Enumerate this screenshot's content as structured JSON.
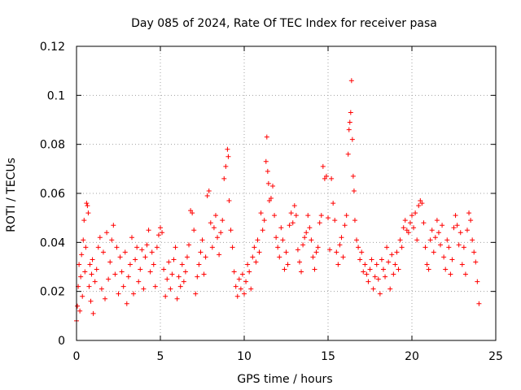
{
  "chart_data": {
    "type": "scatter",
    "title": "Day 085 of 2024, Rate Of TEC Index for receiver pasa",
    "xlabel": "GPS time / hours",
    "ylabel": "ROTI / TECUs",
    "xlim": [
      0,
      25
    ],
    "ylim": [
      0,
      0.12
    ],
    "x_ticks": [
      0,
      5,
      10,
      15,
      20,
      25
    ],
    "x_tick_labels": [
      "0",
      "5",
      "10",
      "15",
      "20",
      "25"
    ],
    "y_ticks": [
      0,
      0.02,
      0.04,
      0.06,
      0.08,
      0.1,
      0.12
    ],
    "y_tick_labels": [
      "0",
      "0.02",
      "0.04",
      "0.06",
      "0.08",
      "0.1",
      "0.12"
    ],
    "grid": true,
    "marker": "+",
    "series": [
      {
        "name": "ROTI",
        "color": "#ff0000",
        "points": [
          [
            0.0,
            0.008
          ],
          [
            0.05,
            0.014
          ],
          [
            0.1,
            0.022
          ],
          [
            0.15,
            0.031
          ],
          [
            0.2,
            0.012
          ],
          [
            0.25,
            0.026
          ],
          [
            0.3,
            0.035
          ],
          [
            0.35,
            0.018
          ],
          [
            0.4,
            0.041
          ],
          [
            0.45,
            0.049
          ],
          [
            0.5,
            0.028
          ],
          [
            0.55,
            0.038
          ],
          [
            0.6,
            0.056
          ],
          [
            0.65,
            0.055
          ],
          [
            0.7,
            0.052
          ],
          [
            0.75,
            0.022
          ],
          [
            0.8,
            0.031
          ],
          [
            0.85,
            0.016
          ],
          [
            0.9,
            0.027
          ],
          [
            0.95,
            0.033
          ],
          [
            1.0,
            0.011
          ],
          [
            1.1,
            0.024
          ],
          [
            1.2,
            0.029
          ],
          [
            1.3,
            0.038
          ],
          [
            1.4,
            0.042
          ],
          [
            1.5,
            0.021
          ],
          [
            1.6,
            0.036
          ],
          [
            1.7,
            0.017
          ],
          [
            1.8,
            0.044
          ],
          [
            1.9,
            0.025
          ],
          [
            2.0,
            0.032
          ],
          [
            2.1,
            0.041
          ],
          [
            2.2,
            0.047
          ],
          [
            2.3,
            0.027
          ],
          [
            2.4,
            0.038
          ],
          [
            2.5,
            0.019
          ],
          [
            2.6,
            0.034
          ],
          [
            2.7,
            0.028
          ],
          [
            2.8,
            0.022
          ],
          [
            2.9,
            0.036
          ],
          [
            3.0,
            0.015
          ],
          [
            3.1,
            0.026
          ],
          [
            3.2,
            0.031
          ],
          [
            3.3,
            0.042
          ],
          [
            3.4,
            0.019
          ],
          [
            3.5,
            0.033
          ],
          [
            3.6,
            0.038
          ],
          [
            3.7,
            0.024
          ],
          [
            3.8,
            0.029
          ],
          [
            3.9,
            0.037
          ],
          [
            4.0,
            0.021
          ],
          [
            4.1,
            0.034
          ],
          [
            4.2,
            0.039
          ],
          [
            4.3,
            0.045
          ],
          [
            4.4,
            0.028
          ],
          [
            4.5,
            0.036
          ],
          [
            4.6,
            0.031
          ],
          [
            4.7,
            0.022
          ],
          [
            4.8,
            0.038
          ],
          [
            4.9,
            0.043
          ],
          [
            5.0,
            0.046
          ],
          [
            5.1,
            0.044
          ],
          [
            5.2,
            0.029
          ],
          [
            5.3,
            0.018
          ],
          [
            5.4,
            0.025
          ],
          [
            5.5,
            0.032
          ],
          [
            5.6,
            0.021
          ],
          [
            5.7,
            0.027
          ],
          [
            5.8,
            0.033
          ],
          [
            5.9,
            0.038
          ],
          [
            6.0,
            0.017
          ],
          [
            6.1,
            0.026
          ],
          [
            6.2,
            0.022
          ],
          [
            6.3,
            0.031
          ],
          [
            6.4,
            0.024
          ],
          [
            6.5,
            0.028
          ],
          [
            6.6,
            0.034
          ],
          [
            6.7,
            0.039
          ],
          [
            6.8,
            0.053
          ],
          [
            6.9,
            0.052
          ],
          [
            7.0,
            0.045
          ],
          [
            7.1,
            0.019
          ],
          [
            7.2,
            0.026
          ],
          [
            7.3,
            0.031
          ],
          [
            7.4,
            0.036
          ],
          [
            7.5,
            0.041
          ],
          [
            7.6,
            0.027
          ],
          [
            7.7,
            0.034
          ],
          [
            7.8,
            0.059
          ],
          [
            7.9,
            0.061
          ],
          [
            8.0,
            0.048
          ],
          [
            8.1,
            0.038
          ],
          [
            8.2,
            0.046
          ],
          [
            8.3,
            0.051
          ],
          [
            8.4,
            0.042
          ],
          [
            8.5,
            0.035
          ],
          [
            8.6,
            0.044
          ],
          [
            8.7,
            0.049
          ],
          [
            8.8,
            0.066
          ],
          [
            8.9,
            0.071
          ],
          [
            9.0,
            0.078
          ],
          [
            9.05,
            0.075
          ],
          [
            9.1,
            0.057
          ],
          [
            9.2,
            0.045
          ],
          [
            9.3,
            0.038
          ],
          [
            9.4,
            0.028
          ],
          [
            9.5,
            0.022
          ],
          [
            9.6,
            0.018
          ],
          [
            9.7,
            0.025
          ],
          [
            9.8,
            0.021
          ],
          [
            9.9,
            0.027
          ],
          [
            10.0,
            0.019
          ],
          [
            10.1,
            0.024
          ],
          [
            10.2,
            0.031
          ],
          [
            10.3,
            0.028
          ],
          [
            10.4,
            0.021
          ],
          [
            10.5,
            0.034
          ],
          [
            10.6,
            0.038
          ],
          [
            10.7,
            0.032
          ],
          [
            10.8,
            0.041
          ],
          [
            10.9,
            0.036
          ],
          [
            11.0,
            0.052
          ],
          [
            11.1,
            0.045
          ],
          [
            11.2,
            0.049
          ],
          [
            11.3,
            0.073
          ],
          [
            11.35,
            0.083
          ],
          [
            11.4,
            0.069
          ],
          [
            11.45,
            0.064
          ],
          [
            11.5,
            0.057
          ],
          [
            11.6,
            0.058
          ],
          [
            11.7,
            0.063
          ],
          [
            11.8,
            0.051
          ],
          [
            11.9,
            0.042
          ],
          [
            12.0,
            0.038
          ],
          [
            12.1,
            0.034
          ],
          [
            12.2,
            0.046
          ],
          [
            12.3,
            0.041
          ],
          [
            12.4,
            0.029
          ],
          [
            12.5,
            0.036
          ],
          [
            12.6,
            0.031
          ],
          [
            12.7,
            0.047
          ],
          [
            12.8,
            0.052
          ],
          [
            12.9,
            0.048
          ],
          [
            13.0,
            0.055
          ],
          [
            13.1,
            0.051
          ],
          [
            13.2,
            0.037
          ],
          [
            13.3,
            0.032
          ],
          [
            13.4,
            0.028
          ],
          [
            13.5,
            0.039
          ],
          [
            13.6,
            0.042
          ],
          [
            13.7,
            0.044
          ],
          [
            13.8,
            0.051
          ],
          [
            13.9,
            0.046
          ],
          [
            14.0,
            0.041
          ],
          [
            14.1,
            0.034
          ],
          [
            14.2,
            0.029
          ],
          [
            14.3,
            0.036
          ],
          [
            14.4,
            0.038
          ],
          [
            14.5,
            0.048
          ],
          [
            14.6,
            0.051
          ],
          [
            14.7,
            0.071
          ],
          [
            14.8,
            0.066
          ],
          [
            14.9,
            0.067
          ],
          [
            15.0,
            0.05
          ],
          [
            15.1,
            0.037
          ],
          [
            15.2,
            0.066
          ],
          [
            15.3,
            0.056
          ],
          [
            15.4,
            0.049
          ],
          [
            15.5,
            0.036
          ],
          [
            15.6,
            0.031
          ],
          [
            15.7,
            0.039
          ],
          [
            15.8,
            0.042
          ],
          [
            15.9,
            0.034
          ],
          [
            16.0,
            0.047
          ],
          [
            16.1,
            0.051
          ],
          [
            16.2,
            0.076
          ],
          [
            16.25,
            0.086
          ],
          [
            16.3,
            0.089
          ],
          [
            16.35,
            0.093
          ],
          [
            16.4,
            0.106
          ],
          [
            16.45,
            0.082
          ],
          [
            16.5,
            0.067
          ],
          [
            16.55,
            0.061
          ],
          [
            16.6,
            0.049
          ],
          [
            16.7,
            0.041
          ],
          [
            16.8,
            0.038
          ],
          [
            16.9,
            0.033
          ],
          [
            17.0,
            0.036
          ],
          [
            17.1,
            0.028
          ],
          [
            17.2,
            0.031
          ],
          [
            17.3,
            0.027
          ],
          [
            17.4,
            0.024
          ],
          [
            17.5,
            0.029
          ],
          [
            17.6,
            0.033
          ],
          [
            17.7,
            0.021
          ],
          [
            17.8,
            0.026
          ],
          [
            17.9,
            0.031
          ],
          [
            18.0,
            0.025
          ],
          [
            18.1,
            0.019
          ],
          [
            18.2,
            0.033
          ],
          [
            18.3,
            0.029
          ],
          [
            18.4,
            0.026
          ],
          [
            18.5,
            0.038
          ],
          [
            18.6,
            0.032
          ],
          [
            18.7,
            0.021
          ],
          [
            18.8,
            0.035
          ],
          [
            18.9,
            0.027
          ],
          [
            19.0,
            0.031
          ],
          [
            19.1,
            0.036
          ],
          [
            19.2,
            0.029
          ],
          [
            19.3,
            0.041
          ],
          [
            19.4,
            0.038
          ],
          [
            19.5,
            0.046
          ],
          [
            19.6,
            0.049
          ],
          [
            19.7,
            0.045
          ],
          [
            19.8,
            0.044
          ],
          [
            19.9,
            0.048
          ],
          [
            20.0,
            0.051
          ],
          [
            20.1,
            0.046
          ],
          [
            20.2,
            0.052
          ],
          [
            20.3,
            0.041
          ],
          [
            20.4,
            0.055
          ],
          [
            20.5,
            0.057
          ],
          [
            20.6,
            0.056
          ],
          [
            20.7,
            0.048
          ],
          [
            20.8,
            0.038
          ],
          [
            20.9,
            0.031
          ],
          [
            21.0,
            0.029
          ],
          [
            21.1,
            0.041
          ],
          [
            21.2,
            0.045
          ],
          [
            21.3,
            0.036
          ],
          [
            21.4,
            0.042
          ],
          [
            21.5,
            0.049
          ],
          [
            21.6,
            0.044
          ],
          [
            21.7,
            0.039
          ],
          [
            21.8,
            0.047
          ],
          [
            21.9,
            0.034
          ],
          [
            22.0,
            0.029
          ],
          [
            22.1,
            0.041
          ],
          [
            22.2,
            0.038
          ],
          [
            22.3,
            0.027
          ],
          [
            22.4,
            0.033
          ],
          [
            22.5,
            0.046
          ],
          [
            22.6,
            0.051
          ],
          [
            22.7,
            0.047
          ],
          [
            22.8,
            0.039
          ],
          [
            22.9,
            0.044
          ],
          [
            23.0,
            0.031
          ],
          [
            23.1,
            0.038
          ],
          [
            23.2,
            0.027
          ],
          [
            23.3,
            0.045
          ],
          [
            23.4,
            0.052
          ],
          [
            23.5,
            0.049
          ],
          [
            23.6,
            0.041
          ],
          [
            23.7,
            0.036
          ],
          [
            23.8,
            0.032
          ],
          [
            23.9,
            0.024
          ],
          [
            24.0,
            0.015
          ]
        ]
      }
    ]
  }
}
